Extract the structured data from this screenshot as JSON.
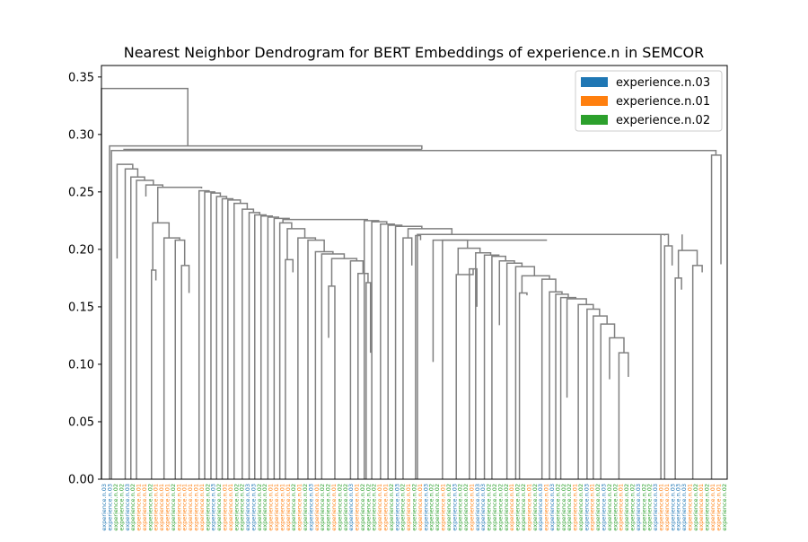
{
  "chart_data": {
    "type": "dendrogram",
    "title": "Nearest Neighbor Dendrogram for BERT Embeddings of experience.n in SEMCOR",
    "xlabel": "",
    "ylabel": "",
    "ylim": [
      0,
      0.36
    ],
    "yticks": [
      0.0,
      0.05,
      0.1,
      0.15,
      0.2,
      0.25,
      0.3,
      0.35
    ],
    "ytick_labels": [
      "0.00",
      "0.05",
      "0.10",
      "0.15",
      "0.20",
      "0.25",
      "0.30",
      "0.35"
    ],
    "legend_position": "top-right",
    "link_color": "#808080",
    "legend": [
      {
        "label": "experience.n.03",
        "color": "#1f77b4"
      },
      {
        "label": "experience.n.01",
        "color": "#ff7f0e"
      },
      {
        "label": "experience.n.02",
        "color": "#2ca02c"
      }
    ],
    "leaf_labels": [
      "experience.n.03",
      "experience.n.03",
      "experience.n.02",
      "experience.n.02",
      "experience.n.03",
      "experience.n.02",
      "experience.n.01",
      "experience.n.01",
      "experience.n.02",
      "experience.n.01",
      "experience.n.01",
      "experience.n.01",
      "experience.n.02",
      "experience.n.01",
      "experience.n.01",
      "experience.n.01",
      "experience.n.01",
      "experience.n.01",
      "experience.n.02",
      "experience.n.03",
      "experience.n.02",
      "experience.n.01",
      "experience.n.01",
      "experience.n.02",
      "experience.n.02",
      "experience.n.03",
      "experience.n.03",
      "experience.n.02",
      "experience.n.02",
      "experience.n.01",
      "experience.n.01",
      "experience.n.01",
      "experience.n.01",
      "experience.n.02",
      "experience.n.01",
      "experience.n.02",
      "experience.n.03",
      "experience.n.01",
      "experience.n.02",
      "experience.n.02",
      "experience.n.01",
      "experience.n.02",
      "experience.n.02",
      "experience.n.03",
      "experience.n.01",
      "experience.n.02",
      "experience.n.02",
      "experience.n.02",
      "experience.n.01",
      "experience.n.01",
      "experience.n.02",
      "experience.n.03",
      "experience.n.02",
      "experience.n.01",
      "experience.n.02",
      "experience.n.01",
      "experience.n.03",
      "experience.n.02",
      "experience.n.02",
      "experience.n.01",
      "experience.n.02",
      "experience.n.03",
      "experience.n.02",
      "experience.n.02",
      "experience.n.01",
      "experience.n.03",
      "experience.n.03",
      "experience.n.02",
      "experience.n.02",
      "experience.n.02",
      "experience.n.02",
      "experience.n.01",
      "experience.n.02",
      "experience.n.02",
      "experience.n.01",
      "experience.n.02",
      "experience.n.03",
      "experience.n.01",
      "experience.n.03",
      "experience.n.02",
      "experience.n.02",
      "experience.n.02",
      "experience.n.01",
      "experience.n.02",
      "experience.n.03",
      "experience.n.01",
      "experience.n.02",
      "experience.n.03",
      "experience.n.02",
      "experience.n.02",
      "experience.n.01",
      "experience.n.02",
      "experience.n.02",
      "experience.n.03",
      "experience.n.02",
      "experience.n.02",
      "experience.n.03",
      "experience.n.01",
      "experience.n.01",
      "experience.n.03",
      "experience.n.03",
      "experience.n.03",
      "experience.n.01",
      "experience.n.02",
      "experience.n.01",
      "experience.n.02",
      "experience.n.01",
      "experience.n.01",
      "experience.n.02"
    ],
    "links": [
      [
        0.34,
        0.0,
        0.29
      ],
      [
        0.291,
        0.0,
        0.287
      ],
      [
        0.287,
        0.0,
        0.286
      ],
      [
        0.286,
        0.0,
        0.282
      ],
      [
        0.282,
        0.0,
        0.187
      ],
      [
        0.274,
        0.192,
        0.27
      ],
      [
        0.27,
        0.0,
        0.263
      ],
      [
        0.263,
        0.0,
        0.26
      ],
      [
        0.26,
        0.0,
        0.256
      ],
      [
        0.256,
        0.246,
        0.254
      ],
      [
        0.254,
        0.223,
        0.253
      ],
      [
        0.223,
        0.182,
        0.21
      ],
      [
        0.182,
        0.0,
        0.173
      ],
      [
        0.21,
        0.0,
        0.208
      ],
      [
        0.208,
        0.0,
        0.186
      ],
      [
        0.186,
        0.0,
        0.162
      ],
      [
        0.251,
        0.0,
        0.25
      ],
      [
        0.25,
        0.0,
        0.249
      ],
      [
        0.249,
        0.0,
        0.246
      ],
      [
        0.246,
        0.0,
        0.244
      ],
      [
        0.244,
        0.0,
        0.243
      ],
      [
        0.243,
        0.0,
        0.24
      ],
      [
        0.24,
        0.0,
        0.235
      ],
      [
        0.235,
        0.0,
        0.232
      ],
      [
        0.232,
        0.0,
        0.23
      ],
      [
        0.23,
        0.0,
        0.229
      ],
      [
        0.229,
        0.0,
        0.228
      ],
      [
        0.228,
        0.0,
        0.227
      ],
      [
        0.227,
        0.0,
        0.226
      ],
      [
        0.226,
        0.223,
        0.225
      ],
      [
        0.223,
        0.0,
        0.218
      ],
      [
        0.218,
        0.191,
        0.21
      ],
      [
        0.191,
        0.0,
        0.18
      ],
      [
        0.21,
        0.0,
        0.208
      ],
      [
        0.208,
        0.0,
        0.198
      ],
      [
        0.198,
        0.0,
        0.196
      ],
      [
        0.196,
        0.0,
        0.192
      ],
      [
        0.192,
        0.168,
        0.19
      ],
      [
        0.168,
        0.123,
        0.0
      ],
      [
        0.19,
        0.0,
        0.179
      ],
      [
        0.179,
        0.0,
        0.171
      ],
      [
        0.171,
        0.0,
        0.11
      ],
      [
        0.225,
        0.0,
        0.224
      ],
      [
        0.224,
        0.0,
        0.222
      ],
      [
        0.222,
        0.0,
        0.221
      ],
      [
        0.221,
        0.0,
        0.22
      ],
      [
        0.22,
        0.0,
        0.218
      ],
      [
        0.218,
        0.21,
        0.213
      ],
      [
        0.21,
        0.0,
        0.186
      ],
      [
        0.213,
        0.0,
        0.212
      ],
      [
        0.212,
        0.0,
        0.208
      ],
      [
        0.208,
        0.102,
        0.208
      ],
      [
        0.208,
        0.0,
        0.201
      ],
      [
        0.201,
        0.178,
        0.197
      ],
      [
        0.178,
        0.0,
        0.183
      ],
      [
        0.183,
        0.0,
        0.15
      ],
      [
        0.197,
        0.0,
        0.195
      ],
      [
        0.195,
        0.0,
        0.194
      ],
      [
        0.194,
        0.0,
        0.19
      ],
      [
        0.19,
        0.134,
        0.188
      ],
      [
        0.188,
        0.0,
        0.185
      ],
      [
        0.185,
        0.0,
        0.177
      ],
      [
        0.177,
        0.162,
        0.174
      ],
      [
        0.162,
        0.0,
        0.16
      ],
      [
        0.174,
        0.0,
        0.163
      ],
      [
        0.163,
        0.0,
        0.161
      ],
      [
        0.161,
        0.0,
        0.158
      ],
      [
        0.158,
        0.0,
        0.157
      ],
      [
        0.157,
        0.071,
        0.152
      ],
      [
        0.152,
        0.0,
        0.148
      ],
      [
        0.148,
        0.0,
        0.142
      ],
      [
        0.142,
        0.0,
        0.135
      ],
      [
        0.135,
        0.0,
        0.123
      ],
      [
        0.123,
        0.087,
        0.11
      ],
      [
        0.11,
        0.0,
        0.089
      ],
      [
        0.213,
        0.0,
        0.203
      ],
      [
        0.203,
        0.0,
        0.186
      ],
      [
        0.199,
        0.175,
        0.186
      ],
      [
        0.175,
        0.0,
        0.165
      ],
      [
        0.186,
        0.0,
        0.18
      ]
    ]
  }
}
